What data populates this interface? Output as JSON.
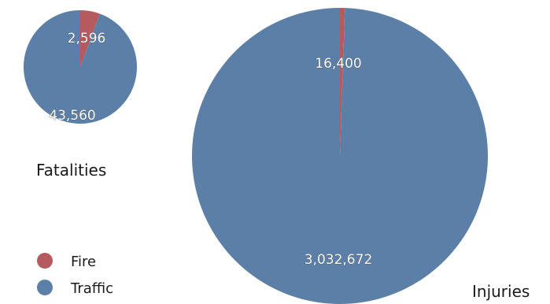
{
  "chart_data": [
    {
      "type": "pie",
      "title": "Fatalities",
      "slices": [
        {
          "category": "Fire",
          "value": 2596,
          "label": "2,596",
          "color": "#b55a5f"
        },
        {
          "category": "Traffic",
          "value": 43560,
          "label": "43,560",
          "color": "#5b7fa6"
        }
      ]
    },
    {
      "type": "pie",
      "title": "Injuries",
      "slices": [
        {
          "category": "Fire",
          "value": 16400,
          "label": "16,400",
          "color": "#b55a5f"
        },
        {
          "category": "Traffic",
          "value": 3032672,
          "label": "3,032,672",
          "color": "#5b7fa6"
        }
      ]
    }
  ],
  "legend": {
    "placement": "bottom-left",
    "items": [
      {
        "label": "Fire",
        "color": "#b55a5f"
      },
      {
        "label": "Traffic",
        "color": "#5b7fa6"
      }
    ]
  }
}
